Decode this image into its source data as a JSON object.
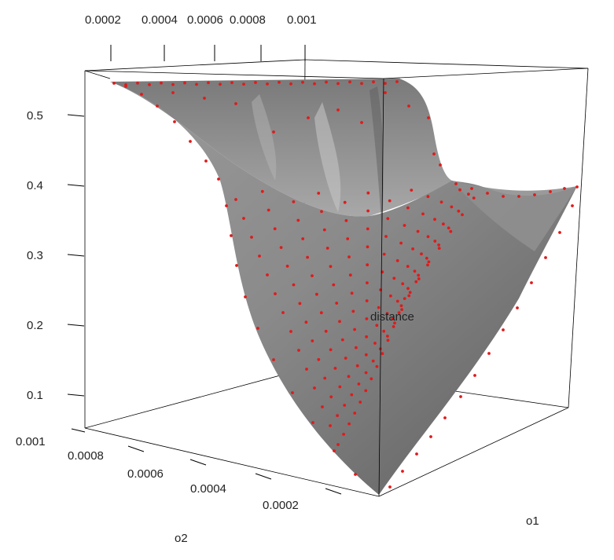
{
  "chart_data": {
    "type": "surface3d",
    "zlabel": "distance",
    "xlabel": "o1",
    "ylabel": "o2",
    "x_ticks": [
      "0.0002",
      "0.0004",
      "0.0006",
      "0.0008",
      "0.001"
    ],
    "y_ticks": [
      "0.001",
      "0.0008",
      "0.0006",
      "0.0004",
      "0.0002"
    ],
    "z_ticks": [
      "0.5",
      "0.4",
      "0.3",
      "0.2",
      "0.1"
    ],
    "zlim": [
      0.05,
      0.56
    ],
    "xlim": [
      5e-05,
      0.001
    ],
    "ylim": [
      5e-05,
      0.001
    ],
    "colors": {
      "surface": "#8c8c8c",
      "points": "#e11a1a",
      "box": "#000000"
    },
    "surface_profile": {
      "description": "distance as a function of o2 (y) along the grid: high plateau for large o2 falling to a minimum at the front corner",
      "o2": [
        0.001,
        0.0009,
        0.0008,
        0.0007,
        0.0006,
        0.0005,
        0.0004,
        0.0003,
        0.0002,
        0.0001,
        5e-05
      ],
      "distance_at_o1_min": [
        0.55,
        0.54,
        0.5,
        0.43,
        0.36,
        0.29,
        0.22,
        0.16,
        0.11,
        0.08,
        0.07
      ],
      "distance_at_o1_max": [
        0.55,
        0.54,
        0.5,
        0.43,
        0.41,
        0.41,
        0.4,
        0.36,
        0.32,
        0.29,
        0.07
      ]
    }
  }
}
